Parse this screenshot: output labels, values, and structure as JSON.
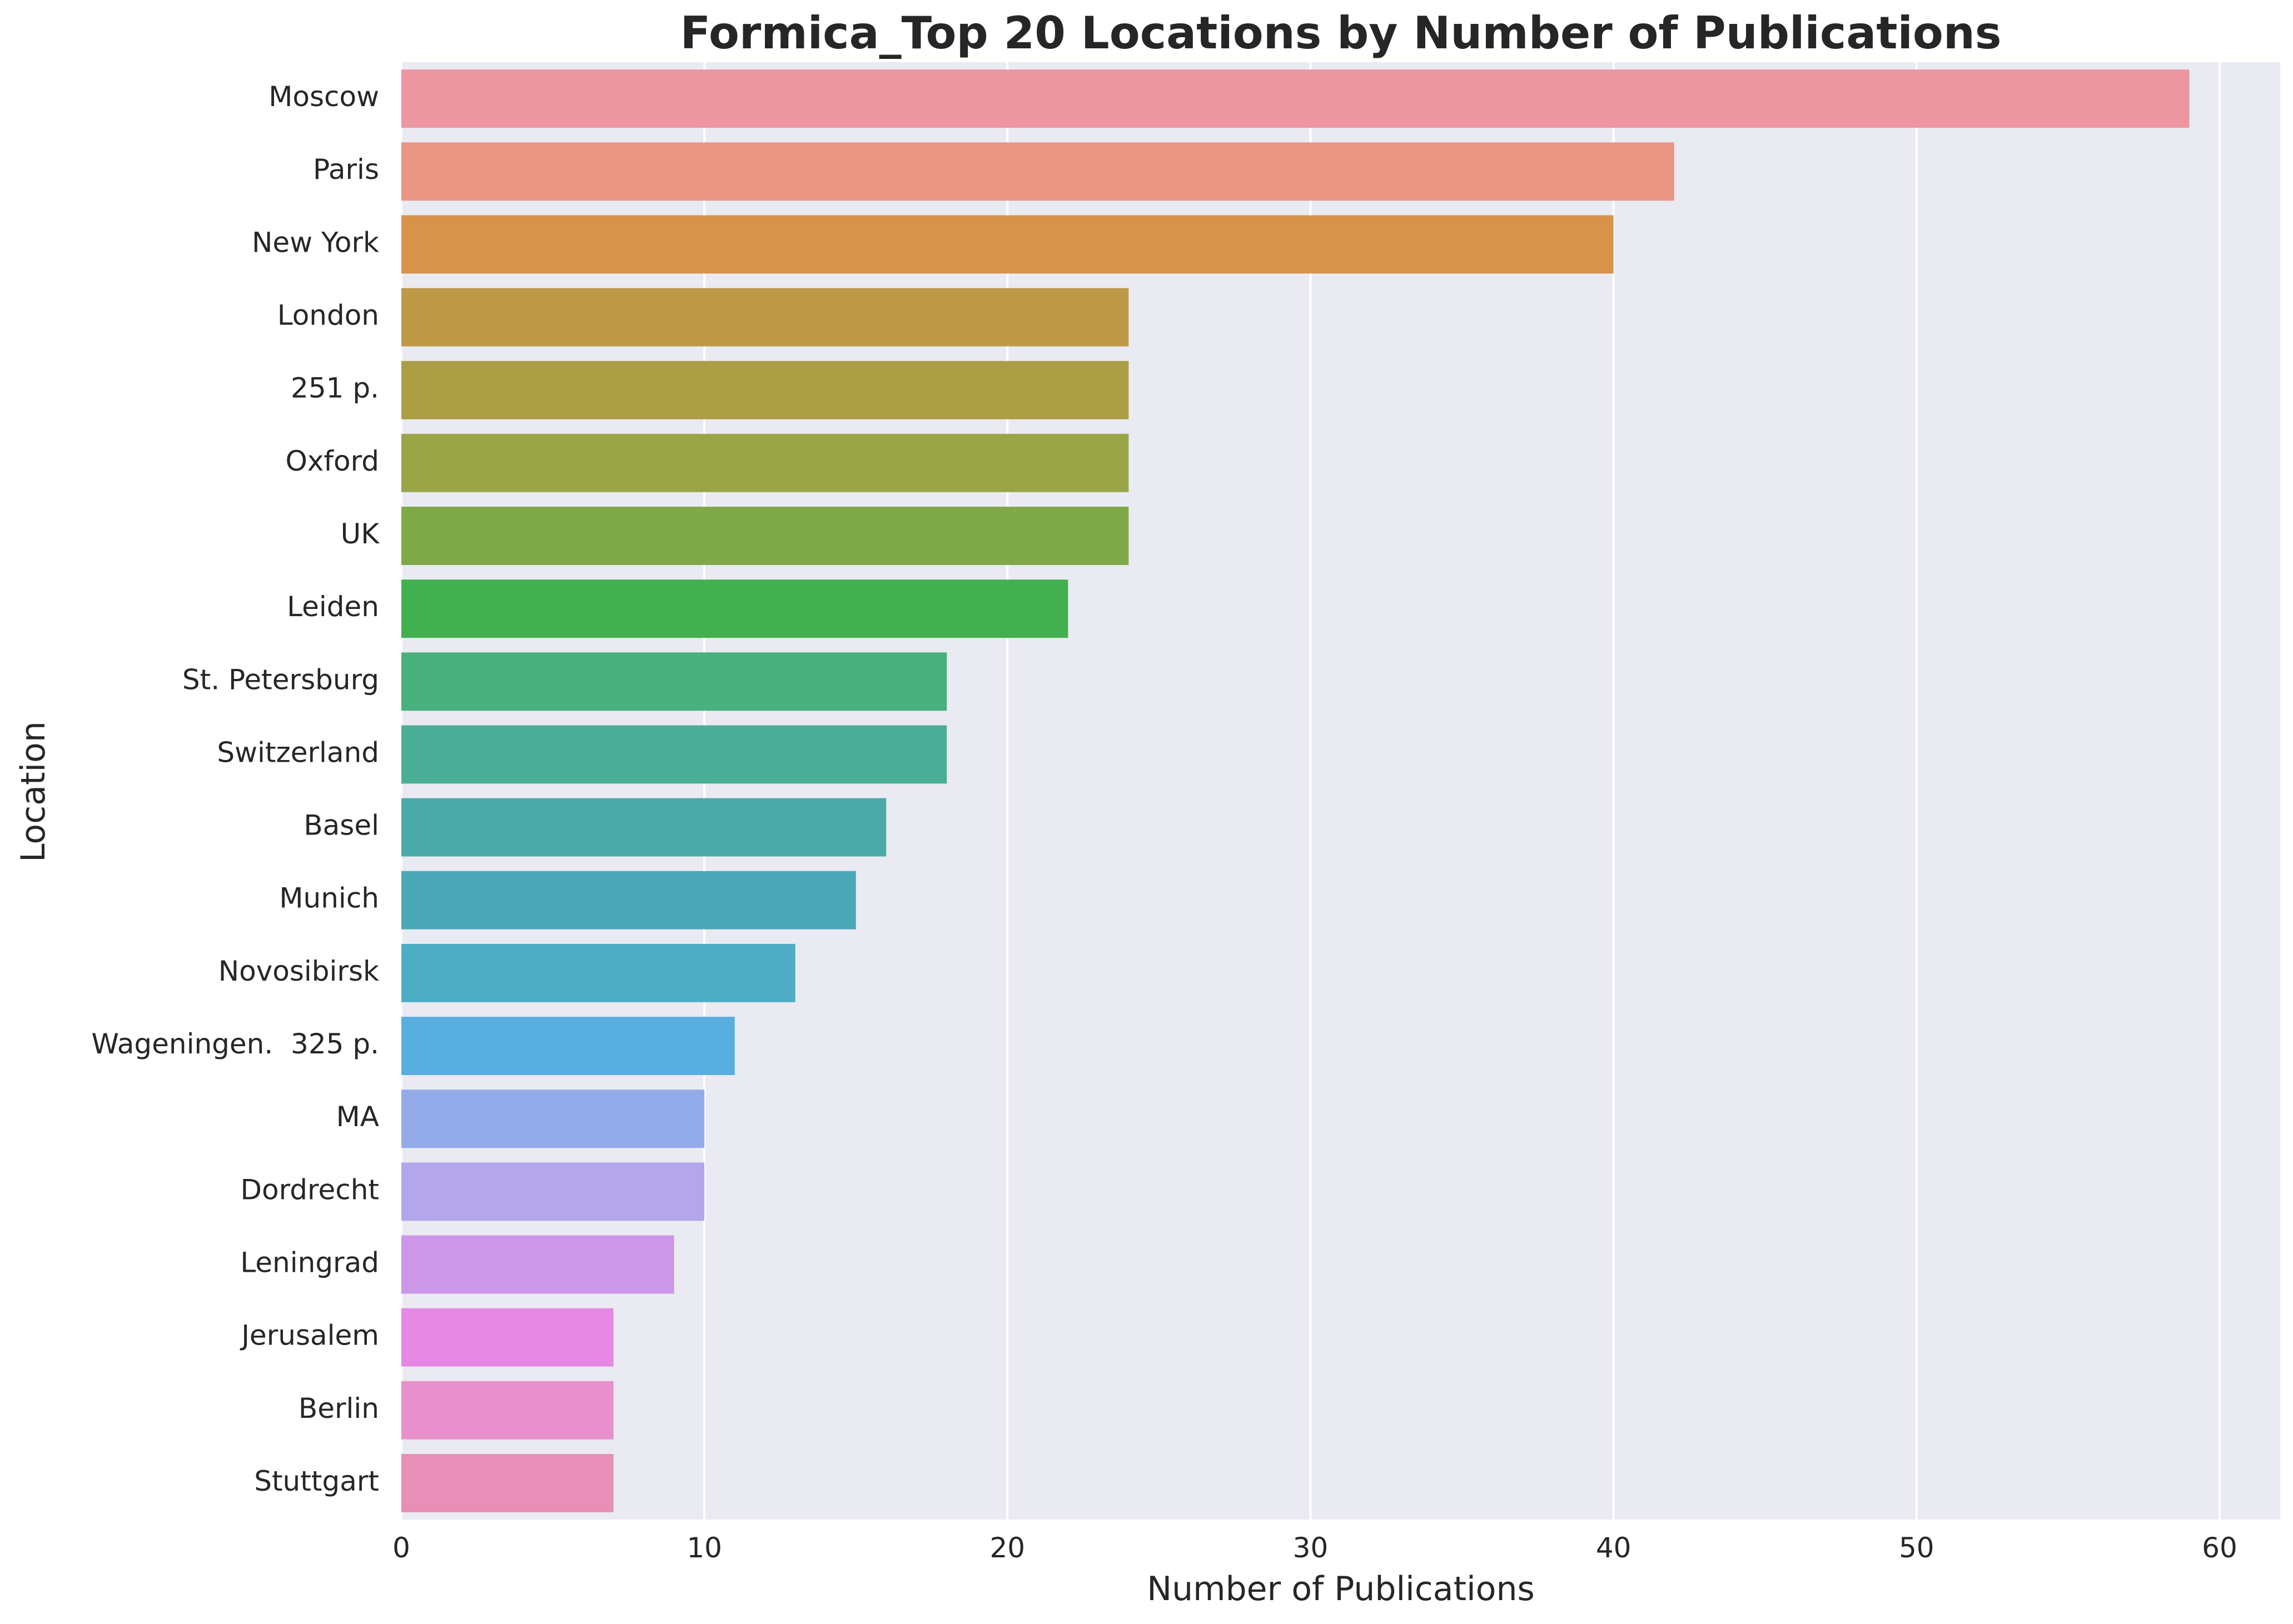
{
  "chart_data": {
    "type": "bar",
    "orientation": "horizontal",
    "title": "Formica_Top 20 Locations by Number of Publications",
    "xlabel": "Number of Publications",
    "ylabel": "Location",
    "xlim": [
      0,
      62
    ],
    "xticks": [
      0,
      10,
      20,
      30,
      40,
      50,
      60
    ],
    "grid": true,
    "categories": [
      "Moscow",
      "Paris",
      "New York",
      "London",
      "251 p.",
      "Oxford",
      "UK",
      "Leiden",
      "St. Petersburg",
      "Switzerland",
      "Basel",
      "Munich",
      "Novosibirsk",
      "Wageningen.  325 p.",
      "MA",
      "Dordrecht",
      "Leningrad",
      "Jerusalem",
      "Berlin",
      "Stuttgart"
    ],
    "values": [
      59,
      42,
      40,
      24,
      24,
      24,
      24,
      22,
      18,
      18,
      16,
      15,
      13,
      11,
      10,
      10,
      9,
      7,
      7,
      7
    ],
    "colors": [
      "#ec96a1",
      "#e99685",
      "#d79349",
      "#be9a48",
      "#ac9e45",
      "#9aa548",
      "#7fa947",
      "#42b04e",
      "#49b07e",
      "#4aaf96",
      "#4aaaa9",
      "#4ba8b7",
      "#4eadc5",
      "#58aede",
      "#94abe9",
      "#b4a6ea",
      "#cc97e6",
      "#e488e4",
      "#e890cc",
      "#e78fb6"
    ],
    "background_color": "#eaeaf2"
  }
}
